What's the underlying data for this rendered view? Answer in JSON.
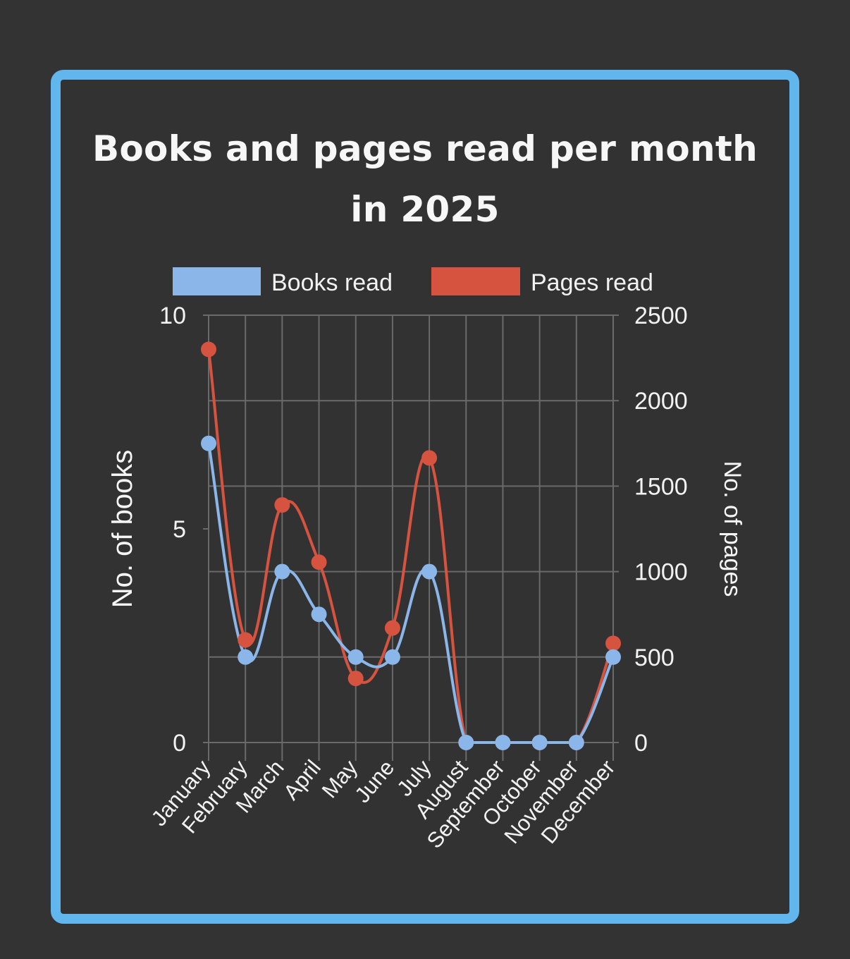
{
  "chart_data": {
    "type": "line",
    "title_lines": [
      "Books and pages read per month",
      "in 2025"
    ],
    "categories": [
      "January",
      "February",
      "March",
      "April",
      "May",
      "June",
      "July",
      "August",
      "September",
      "October",
      "November",
      "December"
    ],
    "series": [
      {
        "name": "Books read",
        "axis": "left",
        "color": "#8ab6ea",
        "values": [
          7,
          2,
          4,
          3,
          2,
          2,
          4,
          0,
          0,
          0,
          0,
          2
        ]
      },
      {
        "name": "Pages read",
        "axis": "right",
        "color": "#d6533f",
        "values": [
          2300,
          600,
          1390,
          1055,
          375,
          670,
          1665,
          0,
          0,
          0,
          0,
          580
        ]
      }
    ],
    "ylabel_left": "No. of books",
    "ylabel_right": "No. of pages",
    "ylim_left": [
      0,
      10
    ],
    "ylim_right": [
      0,
      2500
    ],
    "left_ticks": [
      0,
      5,
      10
    ],
    "right_ticks": [
      0,
      500,
      1000,
      1500,
      2000,
      2500
    ],
    "legend_position": "top",
    "grid": true
  }
}
